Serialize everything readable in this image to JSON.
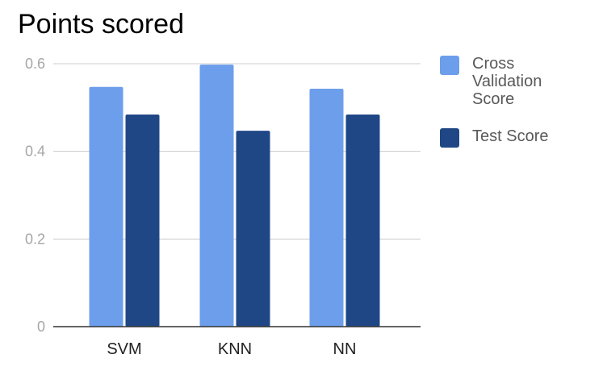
{
  "chart_data": {
    "type": "bar",
    "title": "Points scored",
    "xlabel": "",
    "ylabel": "",
    "categories": [
      "SVM",
      "KNN",
      "NN"
    ],
    "series": [
      {
        "name": "Cross Validation Score",
        "color": "#6d9eeb",
        "values": [
          0.547,
          0.598,
          0.543
        ]
      },
      {
        "name": "Test Score",
        "color": "#1f4785",
        "values": [
          0.484,
          0.447,
          0.484
        ]
      }
    ],
    "ylim": [
      0,
      0.6
    ],
    "yticks": [
      {
        "value": 0,
        "label": "0"
      },
      {
        "value": 0.2,
        "label": "0.2"
      },
      {
        "value": 0.4,
        "label": "0.4"
      },
      {
        "value": 0.6,
        "label": "0.6"
      }
    ],
    "grid": true,
    "legend_position": "right"
  }
}
